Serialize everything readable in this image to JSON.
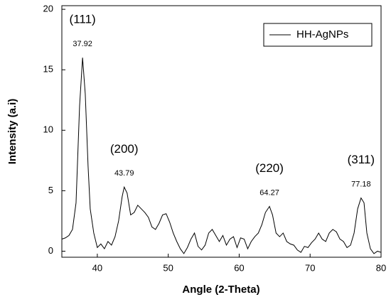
{
  "chart_data": {
    "type": "line",
    "x_label": "Angle (2-Theta)",
    "y_label": "Intensity (a.i)",
    "xlim": [
      35,
      80
    ],
    "ylim": [
      -0.5,
      20.3
    ],
    "xticks": [
      40,
      50,
      60,
      70,
      80
    ],
    "yticks": [
      0,
      5,
      10,
      15,
      20
    ],
    "legend": "top-right",
    "x": [
      35,
      35.5,
      36,
      36.5,
      37,
      37.5,
      37.92,
      38.3,
      38.7,
      39,
      39.5,
      40,
      40.5,
      41,
      41.5,
      42,
      42.5,
      43,
      43.5,
      43.79,
      44.2,
      44.7,
      45.2,
      45.7,
      46.2,
      46.7,
      47.2,
      47.7,
      48.2,
      48.7,
      49.2,
      49.7,
      50.2,
      50.7,
      51.2,
      51.7,
      52.2,
      52.7,
      53.2,
      53.7,
      54.2,
      54.7,
      55.2,
      55.7,
      56.2,
      56.7,
      57.2,
      57.7,
      58.2,
      58.7,
      59.2,
      59.7,
      60.2,
      60.7,
      61.2,
      61.7,
      62.2,
      62.7,
      63.2,
      63.7,
      64.27,
      64.7,
      65.2,
      65.7,
      66.2,
      66.7,
      67.2,
      67.7,
      68.2,
      68.7,
      69.2,
      69.7,
      70.2,
      70.7,
      71.2,
      71.7,
      72.2,
      72.7,
      73.2,
      73.7,
      74.2,
      74.7,
      75.2,
      75.7,
      76.2,
      76.7,
      77.18,
      77.6,
      78,
      78.5,
      79,
      79.5,
      80
    ],
    "series": [
      {
        "name": "HH-AgNPs",
        "color": "#000000",
        "values": [
          1.0,
          1.1,
          1.3,
          1.8,
          4.0,
          12,
          16.0,
          13,
          7,
          3.5,
          1.5,
          0.3,
          0.6,
          0.2,
          0.8,
          0.5,
          1.2,
          2.5,
          4.5,
          5.3,
          4.8,
          3.0,
          3.2,
          3.8,
          3.5,
          3.2,
          2.8,
          2.0,
          1.8,
          2.3,
          3.0,
          3.1,
          2.4,
          1.5,
          0.8,
          0.2,
          -0.2,
          0.3,
          1.0,
          1.5,
          0.4,
          0.1,
          0.5,
          1.5,
          1.8,
          1.3,
          0.8,
          1.3,
          0.5,
          1.0,
          1.2,
          0.3,
          1.1,
          1.0,
          0.2,
          0.8,
          1.2,
          1.5,
          2.2,
          3.2,
          3.7,
          3.0,
          1.5,
          1.2,
          1.5,
          0.8,
          0.6,
          0.5,
          0.1,
          -0.1,
          0.4,
          0.3,
          0.7,
          1.0,
          1.5,
          1.0,
          0.8,
          1.5,
          1.8,
          1.6,
          1.0,
          0.8,
          0.3,
          0.5,
          1.5,
          3.5,
          4.4,
          4.0,
          1.5,
          0.2,
          -0.2,
          0.0,
          -0.1
        ]
      }
    ],
    "peaks": [
      {
        "hkl": "(111)",
        "x": 37.92
      },
      {
        "hkl": "(200)",
        "x": 43.79
      },
      {
        "hkl": "(220)",
        "x": 64.27
      },
      {
        "hkl": "(311)",
        "x": 77.18
      }
    ]
  }
}
